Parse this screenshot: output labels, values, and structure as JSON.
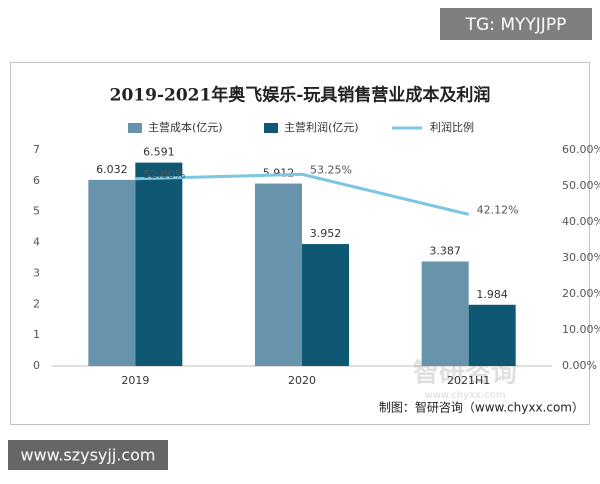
{
  "tag": "TG: MYYJJPP",
  "chart_data": {
    "type": "bar",
    "title": "2019-2021年奥飞娱乐-玩具销售营业成本及利润",
    "categories": [
      "2019",
      "2020",
      "2021H1"
    ],
    "series": [
      {
        "name": "主营成本(亿元)",
        "color": "#6794ab",
        "values": [
          6.032,
          5.912,
          3.387
        ]
      },
      {
        "name": "主营利润(亿元)",
        "color": "#0e5874",
        "values": [
          6.591,
          3.952,
          1.984
        ]
      },
      {
        "name": "利润比例",
        "color": "#7cc6e4",
        "type": "line",
        "axis": "y2",
        "values": [
          52.0,
          53.25,
          42.12
        ],
        "value_labels": [
          "52.00%",
          "53.25%",
          "42.12%"
        ]
      }
    ],
    "ylim": [
      0,
      7
    ],
    "yticks": [
      0,
      1,
      2,
      3,
      4,
      5,
      6,
      7
    ],
    "y2lim": [
      0,
      60
    ],
    "y2ticks": [
      {
        "value": 0,
        "label": "0.00%"
      },
      {
        "value": 10,
        "label": "10.00%"
      },
      {
        "value": 20,
        "label": "20.00%"
      },
      {
        "value": 30,
        "label": "30.00%"
      },
      {
        "value": 40,
        "label": "40.00%"
      },
      {
        "value": 50,
        "label": "50.00%"
      },
      {
        "value": 60,
        "label": "60.00%"
      }
    ],
    "legend": "top",
    "source": "制图：智研咨询（www.chyxx.com）",
    "watermark": "智研咨询",
    "watermark_url": "www.chyxx.com"
  },
  "footer": "www.szysyjj.com"
}
